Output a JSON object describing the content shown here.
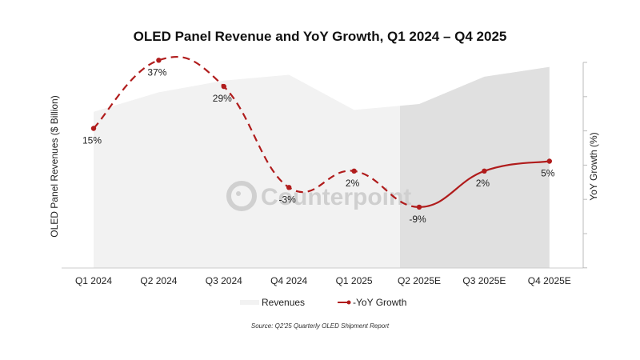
{
  "chart_data": {
    "type": "line",
    "title": "OLED Panel Revenue and YoY Growth, Q1 2024 – Q4 2025",
    "categories": [
      "Q1 2024",
      "Q2 2024",
      "Q3 2024",
      "Q4 2024",
      "Q1 2025",
      "Q2 2025E",
      "Q3 2025E",
      "Q4 2025E"
    ],
    "ylabel_left": "OLED Panel Revenues ($ Billion)",
    "ylabel_right": "YoY Growth (%)",
    "forecast_start_index": 5,
    "series": [
      {
        "name": "Revenues",
        "type": "area",
        "relative_values": [
          0.8,
          0.9,
          0.96,
          0.99,
          0.81,
          0.84,
          0.98,
          1.03
        ],
        "color": "#f2f2f2",
        "forecast_color": "#e0e0e0"
      },
      {
        "name": "-YoY Growth",
        "type": "line",
        "values": [
          15,
          37,
          29,
          -3,
          2,
          -9,
          2,
          5
        ],
        "labels": [
          "15%",
          "37%",
          "29%",
          "-3%",
          "2%",
          "-9%",
          "2%",
          "5%"
        ],
        "color": "#b01c1c",
        "dashed_until_index": 5
      }
    ],
    "legend": [
      "Revenues",
      "-YoY Growth"
    ],
    "legend_position": "bottom",
    "grid": false
  },
  "source": "Source: Q2'25 Quarterly OLED Shipment Report",
  "watermark": "Counterpoint"
}
